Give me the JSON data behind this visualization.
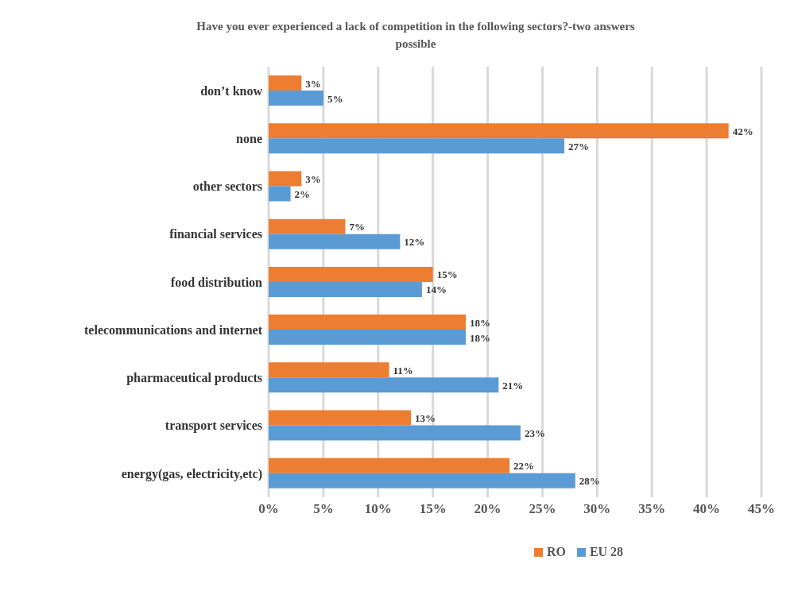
{
  "chart_data": {
    "type": "bar",
    "orientation": "horizontal",
    "title": "Have you ever experienced a lack of competition in the following sectors?-two answers possible",
    "categories": [
      "don’t know",
      "none",
      "other sectors",
      "financial services",
      "food distribution",
      "telecommunications and internet",
      "pharmaceutical products",
      "transport services",
      "energy(gas, electricity,etc)"
    ],
    "series": [
      {
        "name": "RO",
        "color": "#ed7d31",
        "values": [
          3,
          42,
          3,
          7,
          15,
          18,
          11,
          13,
          22
        ],
        "value_labels": [
          "3%",
          "42%",
          "3%",
          "7%",
          "15%",
          "18%",
          "11%",
          "13%",
          "22%"
        ]
      },
      {
        "name": "EU 28",
        "color": "#5b9bd5",
        "values": [
          5,
          27,
          2,
          12,
          14,
          18,
          21,
          23,
          28
        ],
        "value_labels": [
          "5%",
          "27%",
          "2%",
          "12%",
          "14%",
          "18%",
          "21%",
          "23%",
          "28%"
        ]
      }
    ],
    "xlim": [
      0,
      45
    ],
    "xticks": [
      {
        "value": 0,
        "label": "0%"
      },
      {
        "value": 5,
        "label": "5%"
      },
      {
        "value": 10,
        "label": "10%"
      },
      {
        "value": 15,
        "label": "15%"
      },
      {
        "value": 20,
        "label": "20%"
      },
      {
        "value": 25,
        "label": "25%"
      },
      {
        "value": 30,
        "label": "30%"
      },
      {
        "value": 35,
        "label": "35%"
      },
      {
        "value": 40,
        "label": "40%"
      },
      {
        "value": 45,
        "label": "45%"
      }
    ],
    "grid": "x",
    "legend": "bottom"
  }
}
